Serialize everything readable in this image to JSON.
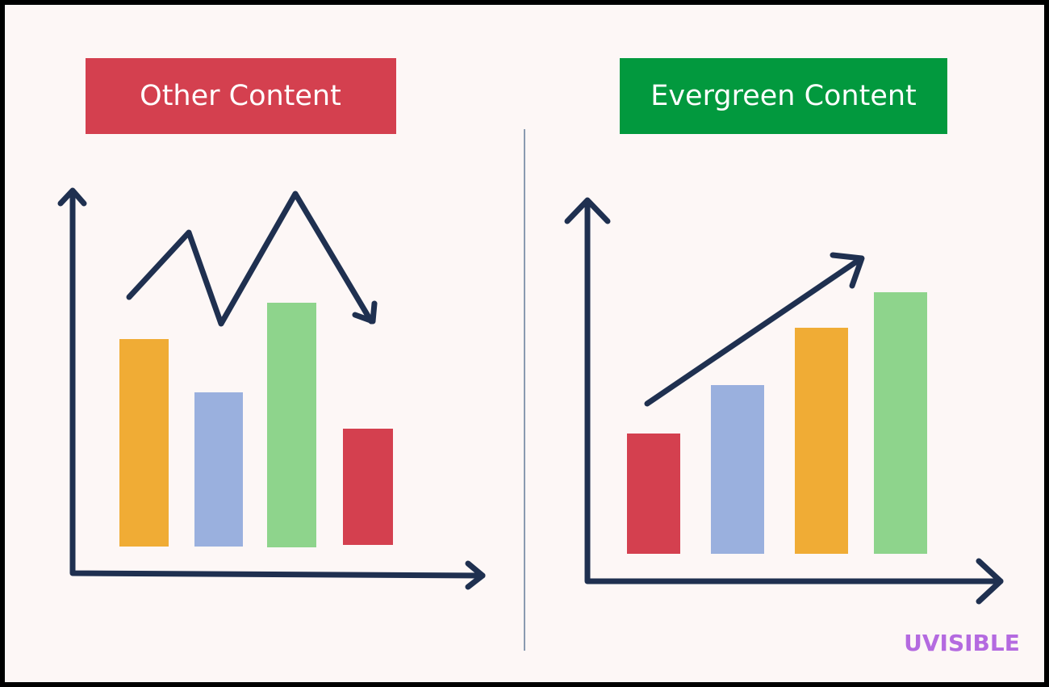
{
  "left": {
    "title": "Other Content"
  },
  "right": {
    "title": "Evergreen Content"
  },
  "logo": "UVISIBLE"
}
